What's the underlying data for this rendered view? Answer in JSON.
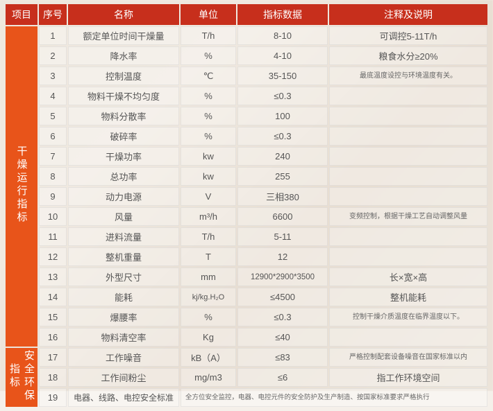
{
  "colors": {
    "header_bg": "#c72f1c",
    "vhead_bg": "#e8541a",
    "header_text": "#ffffff",
    "cell_text": "#555555"
  },
  "header": {
    "project": "项目",
    "seq": "序号",
    "name": "名称",
    "unit": "单位",
    "value": "指标数据",
    "note": "注释及说明"
  },
  "groups": [
    {
      "label": "干燥运行指标",
      "span": 16
    },
    {
      "label": "安全环保指标",
      "span": 3
    }
  ],
  "rows": [
    {
      "seq": "1",
      "name": "额定单位时间干燥量",
      "unit": "T/h",
      "value": "8-10",
      "note": "可调控5-11T/h"
    },
    {
      "seq": "2",
      "name": "降水率",
      "unit": "%",
      "value": "4-10",
      "note": "粮食水分≥20%"
    },
    {
      "seq": "3",
      "name": "控制温度",
      "unit": "℃",
      "value": "35-150",
      "note": "最底温度设控与环境温度有关。",
      "note_small": true
    },
    {
      "seq": "4",
      "name": "物料干燥不均匀度",
      "unit": "%",
      "value": "≤0.3",
      "note": ""
    },
    {
      "seq": "5",
      "name": "物料分散率",
      "unit": "%",
      "value": "100",
      "note": ""
    },
    {
      "seq": "6",
      "name": "破碎率",
      "unit": "%",
      "value": "≤0.3",
      "note": ""
    },
    {
      "seq": "7",
      "name": "干燥功率",
      "unit": "kw",
      "value": "240",
      "note": ""
    },
    {
      "seq": "8",
      "name": "总功率",
      "unit": "kw",
      "value": "255",
      "note": ""
    },
    {
      "seq": "9",
      "name": "动力电源",
      "unit": "V",
      "value": "三相380",
      "note": ""
    },
    {
      "seq": "10",
      "name": "风量",
      "unit": "m³/h",
      "value": "6600",
      "note": "变频控制，根据干燥工艺自动调整风量",
      "note_small": true
    },
    {
      "seq": "11",
      "name": "进料流量",
      "unit": "T/h",
      "value": "5-11",
      "note": ""
    },
    {
      "seq": "12",
      "name": "整机重量",
      "unit": "T",
      "value": "12",
      "note": ""
    },
    {
      "seq": "13",
      "name": "外型尺寸",
      "unit": "mm",
      "value": "12900*2900*3500",
      "note": "长×宽×高"
    },
    {
      "seq": "14",
      "name": "能耗",
      "unit": "kj/kg.H₂O",
      "value": "≤4500",
      "note": "整机能耗"
    },
    {
      "seq": "15",
      "name": "爆腰率",
      "unit": "%",
      "value": "≤0.3",
      "note": "控制干燥介质温度在临界温度以下。",
      "note_small": true
    },
    {
      "seq": "16",
      "name": "物料清空率",
      "unit": "Kg",
      "value": "≤40",
      "note": ""
    },
    {
      "seq": "17",
      "name": "工作噪音",
      "unit": "kB（A）",
      "value": "≤83",
      "note": "严格控制配套设备噪音在国家标准以内",
      "note_small": true
    },
    {
      "seq": "18",
      "name": "工作间粉尘",
      "unit": "mg/m3",
      "value": "≤6",
      "note": "指工作环境空间"
    },
    {
      "seq": "19",
      "name": "电器、线路、电控安全标准",
      "merged_note": "全方位安全监控，电器、电控元件的安全防护及生产制造、按国家标准要求严格执行"
    }
  ]
}
